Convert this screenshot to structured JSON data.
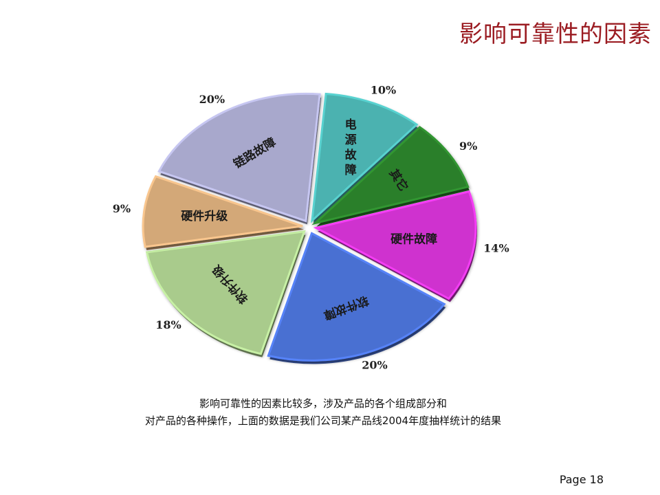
{
  "slide": {
    "title": "影响可靠性的因素",
    "caption_line1": "影响可靠性的因素比较多，涉及产品的各个组成部分和",
    "caption_line2": "对产品的各种操作，上面的数据是我们公司某产品线2004年度抽样统计的结果",
    "page": "Page 18"
  },
  "chart_data": {
    "type": "pie",
    "title": "",
    "slices": [
      {
        "label": "电源故障",
        "value": 10,
        "value_label": "10%",
        "color": "#4bb2b0",
        "label_orientation": "vertical"
      },
      {
        "label": "其它",
        "value": 9,
        "value_label": "9%",
        "color": "#2a7f2a",
        "label_orientation": "rotated"
      },
      {
        "label": "硬件故障",
        "value": 14,
        "value_label": "14%",
        "color": "#cf33cf",
        "label_orientation": "horizontal"
      },
      {
        "label": "软件故障",
        "value": 20,
        "value_label": "20%",
        "color": "#4a6fd2",
        "label_orientation": "rotated"
      },
      {
        "label": "软件升级",
        "value": 18,
        "value_label": "18%",
        "color": "#a9cb8c",
        "label_orientation": "rotated"
      },
      {
        "label": "硬件升级",
        "value": 9,
        "value_label": "9%",
        "color": "#d3a878",
        "label_orientation": "horizontal"
      },
      {
        "label": "链路故障",
        "value": 20,
        "value_label": "20%",
        "color": "#a8a8cc",
        "label_orientation": "rotated"
      }
    ],
    "start_angle_deg": -85,
    "direction": "clockwise",
    "exploded": true,
    "legend": "none"
  }
}
